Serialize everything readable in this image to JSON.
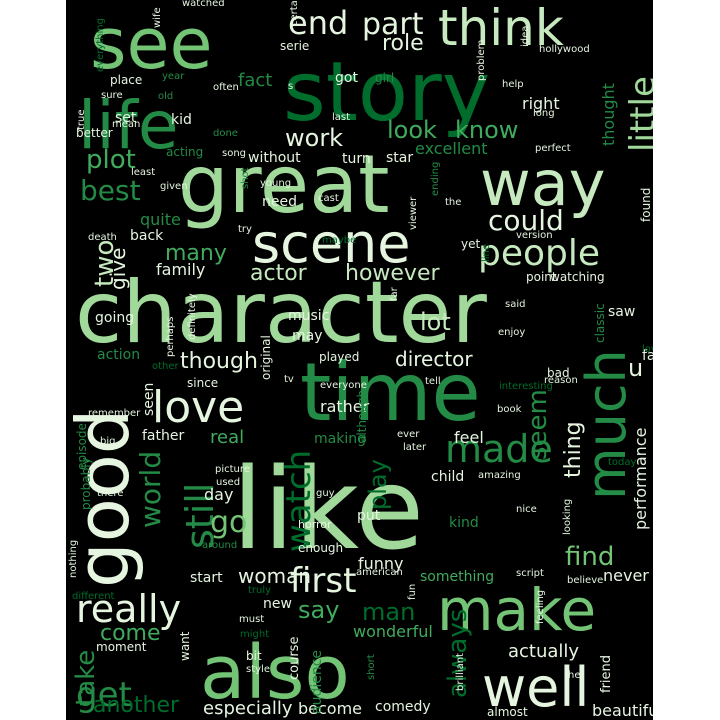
{
  "palette": [
    "#e5f5e0",
    "#c7e9c0",
    "#a1d99b",
    "#74c476",
    "#41ab5d",
    "#238b45",
    "#006d2c",
    "#00441b"
  ],
  "background": "#000000",
  "words": [
    {
      "text": "like",
      "c": 2
    },
    {
      "text": "character",
      "c": 2
    },
    {
      "text": "time",
      "c": 5
    },
    {
      "text": "story",
      "c": 6
    },
    {
      "text": "great",
      "c": 2
    },
    {
      "text": "good",
      "c": 0
    },
    {
      "text": "also",
      "c": 3
    },
    {
      "text": "see",
      "c": 3
    },
    {
      "text": "life",
      "c": 5
    },
    {
      "text": "way",
      "c": 1
    },
    {
      "text": "scene",
      "c": 0
    },
    {
      "text": "make",
      "c": 3
    },
    {
      "text": "much",
      "c": 5
    },
    {
      "text": "well",
      "c": 0
    },
    {
      "text": "think",
      "c": 1
    },
    {
      "text": "love",
      "c": 0
    },
    {
      "text": "people",
      "c": 1
    },
    {
      "text": "really",
      "c": 0
    },
    {
      "text": "little",
      "c": 2
    },
    {
      "text": "end",
      "c": 0
    },
    {
      "text": "part",
      "c": 0
    },
    {
      "text": "still",
      "c": 5
    },
    {
      "text": "watch",
      "c": 6
    },
    {
      "text": "first",
      "c": 0
    },
    {
      "text": "made",
      "c": 5
    },
    {
      "text": "get",
      "c": 5
    },
    {
      "text": "could",
      "c": 0
    },
    {
      "text": "two",
      "c": 1
    },
    {
      "text": "best",
      "c": 5
    },
    {
      "text": "plot",
      "c": 4
    },
    {
      "text": "work",
      "c": 0
    },
    {
      "text": "look",
      "c": 4
    },
    {
      "text": "know",
      "c": 4
    },
    {
      "text": "actor",
      "c": 1
    },
    {
      "text": "however",
      "c": 1
    },
    {
      "text": "lot",
      "c": 1
    },
    {
      "text": "many",
      "c": 4
    },
    {
      "text": "though",
      "c": 0
    },
    {
      "text": "go",
      "c": 3
    },
    {
      "text": "world",
      "c": 5
    },
    {
      "text": "find",
      "c": 3
    },
    {
      "text": "say",
      "c": 4
    },
    {
      "text": "man",
      "c": 6
    },
    {
      "text": "woman",
      "c": 0
    },
    {
      "text": "come",
      "c": 4
    },
    {
      "text": "take",
      "c": 5
    },
    {
      "text": "another",
      "c": 6
    },
    {
      "text": "play",
      "c": 6
    },
    {
      "text": "seem",
      "c": 5
    },
    {
      "text": "thing",
      "c": 0
    },
    {
      "text": "always",
      "c": 6
    },
    {
      "text": "role",
      "c": 0
    },
    {
      "text": "give",
      "c": 0
    },
    {
      "text": "director",
      "c": 0
    },
    {
      "text": "performance",
      "c": 0
    },
    {
      "text": "actually",
      "c": 0
    },
    {
      "text": "especially",
      "c": 0
    },
    {
      "text": "become",
      "c": 0
    },
    {
      "text": "beautiful",
      "c": 0
    },
    {
      "text": "comedy",
      "c": 0
    },
    {
      "text": "almost",
      "c": 0
    },
    {
      "text": "friend",
      "c": 0
    },
    {
      "text": "never",
      "c": 0
    },
    {
      "text": "something",
      "c": 4
    },
    {
      "text": "wonderful",
      "c": 4
    },
    {
      "text": "fact",
      "c": 5
    },
    {
      "text": "right",
      "c": 0
    },
    {
      "text": "thought",
      "c": 5
    },
    {
      "text": "excellent",
      "c": 5
    },
    {
      "text": "u",
      "c": 0
    },
    {
      "text": "fan",
      "c": 0
    },
    {
      "text": "saw",
      "c": 0
    },
    {
      "text": "day",
      "c": 0
    },
    {
      "text": "real",
      "c": 4
    },
    {
      "text": "feel",
      "c": 0
    },
    {
      "text": "child",
      "c": 0
    },
    {
      "text": "kind",
      "c": 5
    },
    {
      "text": "funny",
      "c": 0
    },
    {
      "text": "put",
      "c": 0
    },
    {
      "text": "rather",
      "c": 0
    },
    {
      "text": "music",
      "c": 0
    },
    {
      "text": "may",
      "c": 0
    },
    {
      "text": "going",
      "c": 0
    },
    {
      "text": "family",
      "c": 0
    },
    {
      "text": "quite",
      "c": 5
    },
    {
      "text": "back",
      "c": 0
    },
    {
      "text": "need",
      "c": 0
    },
    {
      "text": "turn",
      "c": 0
    },
    {
      "text": "without",
      "c": 0
    },
    {
      "text": "star",
      "c": 0
    },
    {
      "text": "yet",
      "c": 0
    },
    {
      "text": "point",
      "c": 0
    },
    {
      "text": "watching",
      "c": 0
    },
    {
      "text": "start",
      "c": 0
    },
    {
      "text": "new",
      "c": 0
    },
    {
      "text": "course",
      "c": 0
    },
    {
      "text": "audience",
      "c": 5
    },
    {
      "text": "enough",
      "c": 0
    },
    {
      "text": "horror",
      "c": 0
    },
    {
      "text": "played",
      "c": 0
    },
    {
      "text": "father",
      "c": 0
    },
    {
      "text": "seen",
      "c": 0
    },
    {
      "text": "episode",
      "c": 5
    },
    {
      "text": "probably",
      "c": 5
    },
    {
      "text": "set",
      "c": 0
    },
    {
      "text": "kid",
      "c": 0
    },
    {
      "text": "got",
      "c": 0
    },
    {
      "text": "serie",
      "c": 0
    },
    {
      "text": "better",
      "c": 0
    },
    {
      "text": "place",
      "c": 0
    },
    {
      "text": "action",
      "c": 5
    },
    {
      "text": "since",
      "c": 0
    },
    {
      "text": "original",
      "c": 0
    },
    {
      "text": "bad",
      "c": 0
    },
    {
      "text": "making",
      "c": 5
    },
    {
      "text": "although",
      "c": 5
    },
    {
      "text": "bit",
      "c": 0
    },
    {
      "text": "moment",
      "c": 0
    },
    {
      "text": "want",
      "c": 0
    },
    {
      "text": "found",
      "c": 0
    },
    {
      "text": "enjoy",
      "c": 0
    },
    {
      "text": "classic",
      "c": 5
    },
    {
      "text": "girl",
      "c": 5
    },
    {
      "text": "acting",
      "c": 5
    },
    {
      "text": "often",
      "c": 0
    },
    {
      "text": "hollywood",
      "c": 0
    },
    {
      "text": "idea",
      "c": 0
    },
    {
      "text": "help",
      "c": 0
    },
    {
      "text": "long",
      "c": 0
    },
    {
      "text": "perfect",
      "c": 0
    },
    {
      "text": "given",
      "c": 0
    },
    {
      "text": "least",
      "c": 0
    },
    {
      "text": "song",
      "c": 0
    },
    {
      "text": "young",
      "c": 0
    },
    {
      "text": "cast",
      "c": 0
    },
    {
      "text": "ending",
      "c": 5
    },
    {
      "text": "the",
      "c": 0
    },
    {
      "text": "viewer",
      "c": 0
    },
    {
      "text": "version",
      "c": 0
    },
    {
      "text": "maybe",
      "c": 6
    },
    {
      "text": "try",
      "c": 0
    },
    {
      "text": "line",
      "c": 6
    },
    {
      "text": "far",
      "c": 0
    },
    {
      "text": "said",
      "c": 0
    },
    {
      "text": "loved",
      "c": 6
    },
    {
      "text": "interesting",
      "c": 6
    },
    {
      "text": "reason",
      "c": 0
    },
    {
      "text": "other",
      "c": 6
    },
    {
      "text": "perhaps",
      "c": 0
    },
    {
      "text": "definitely",
      "c": 0
    },
    {
      "text": "tv",
      "c": 0
    },
    {
      "text": "everyone",
      "c": 0
    },
    {
      "text": "tell",
      "c": 0
    },
    {
      "text": "book",
      "c": 0
    },
    {
      "text": "remember",
      "c": 0
    },
    {
      "text": "big",
      "c": 0
    },
    {
      "text": "ever",
      "c": 0
    },
    {
      "text": "later",
      "c": 0
    },
    {
      "text": "guy",
      "c": 0
    },
    {
      "text": "picture",
      "c": 0
    },
    {
      "text": "used",
      "c": 0
    },
    {
      "text": "amazing",
      "c": 0
    },
    {
      "text": "today",
      "c": 6
    },
    {
      "text": "there",
      "c": 0
    },
    {
      "text": "nice",
      "c": 0
    },
    {
      "text": "looking",
      "c": 0
    },
    {
      "text": "around",
      "c": 5
    },
    {
      "text": "nothing",
      "c": 0
    },
    {
      "text": "different",
      "c": 6
    },
    {
      "text": "truly",
      "c": 6
    },
    {
      "text": "american",
      "c": 0
    },
    {
      "text": "script",
      "c": 0
    },
    {
      "text": "believe",
      "c": 0
    },
    {
      "text": "fun",
      "c": 0
    },
    {
      "text": "feeling",
      "c": 0
    },
    {
      "text": "might",
      "c": 6
    },
    {
      "text": "style",
      "c": 0
    },
    {
      "text": "must",
      "c": 0
    },
    {
      "text": "short",
      "c": 5
    },
    {
      "text": "brilliant",
      "c": 0
    },
    {
      "text": "he",
      "c": 0
    },
    {
      "text": "watched",
      "c": 0
    },
    {
      "text": "certainly",
      "c": 0
    },
    {
      "text": "wife",
      "c": 0
    },
    {
      "text": "everything",
      "c": 6
    },
    {
      "text": "sure",
      "c": 0
    },
    {
      "text": "old",
      "c": 5
    },
    {
      "text": "year",
      "c": 5
    },
    {
      "text": "last",
      "c": 0
    },
    {
      "text": "mean",
      "c": 0
    },
    {
      "text": "true",
      "c": 0
    },
    {
      "text": "done",
      "c": 5
    },
    {
      "text": "shot",
      "c": 5
    },
    {
      "text": "s",
      "c": 0
    },
    {
      "text": "problem",
      "c": 0
    },
    {
      "text": "death",
      "c": 0
    }
  ]
}
